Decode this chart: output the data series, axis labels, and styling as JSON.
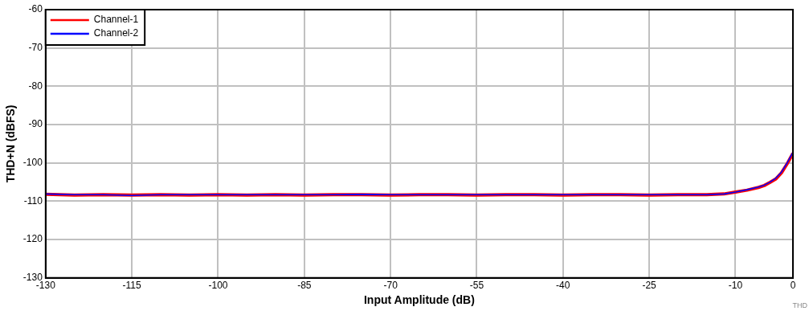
{
  "chart_data": {
    "type": "line",
    "xlabel": "Input Amplitude (dB)",
    "ylabel": "THD+N (dBFS)",
    "x": [
      -130,
      -125,
      -120,
      -115,
      -110,
      -105,
      -100,
      -95,
      -90,
      -85,
      -80,
      -75,
      -70,
      -65,
      -60,
      -55,
      -50,
      -45,
      -40,
      -35,
      -30,
      -25,
      -20,
      -15,
      -12,
      -10,
      -8,
      -6,
      -5,
      -4,
      -3,
      -2,
      -1,
      0
    ],
    "series": [
      {
        "name": "Channel-1",
        "color": "#ff0000",
        "values": [
          -108.2,
          -108.4,
          -108.3,
          -108.4,
          -108.3,
          -108.4,
          -108.3,
          -108.4,
          -108.3,
          -108.4,
          -108.3,
          -108.3,
          -108.4,
          -108.3,
          -108.3,
          -108.4,
          -108.3,
          -108.3,
          -108.4,
          -108.3,
          -108.3,
          -108.4,
          -108.3,
          -108.3,
          -108.1,
          -107.6,
          -107.1,
          -106.4,
          -105.9,
          -105.1,
          -104.2,
          -102.6,
          -100.2,
          -97.5
        ]
      },
      {
        "name": "Channel-2",
        "color": "#0000ff",
        "values": [
          -108.1,
          -108.3,
          -108.3,
          -108.5,
          -108.3,
          -108.3,
          -108.3,
          -108.3,
          -108.3,
          -108.3,
          -108.3,
          -108.2,
          -108.3,
          -108.3,
          -108.3,
          -108.3,
          -108.3,
          -108.3,
          -108.3,
          -108.3,
          -108.3,
          -108.3,
          -108.3,
          -108.3,
          -108.1,
          -107.6,
          -107,
          -106.3,
          -105.8,
          -105,
          -104,
          -102.4,
          -100,
          -97.2
        ]
      }
    ],
    "xlim": [
      -130,
      0
    ],
    "xticks": [
      -130,
      -115,
      -100,
      -85,
      -70,
      -55,
      -40,
      -25,
      -10,
      0
    ],
    "ylim": [
      -130,
      -60
    ],
    "yticks": [
      -130,
      -120,
      -110,
      -100,
      -90,
      -80,
      -70,
      -60
    ],
    "grid": true,
    "legend": "top left",
    "marker": "none",
    "line_style": "solid",
    "annotations": [
      "THD"
    ]
  }
}
